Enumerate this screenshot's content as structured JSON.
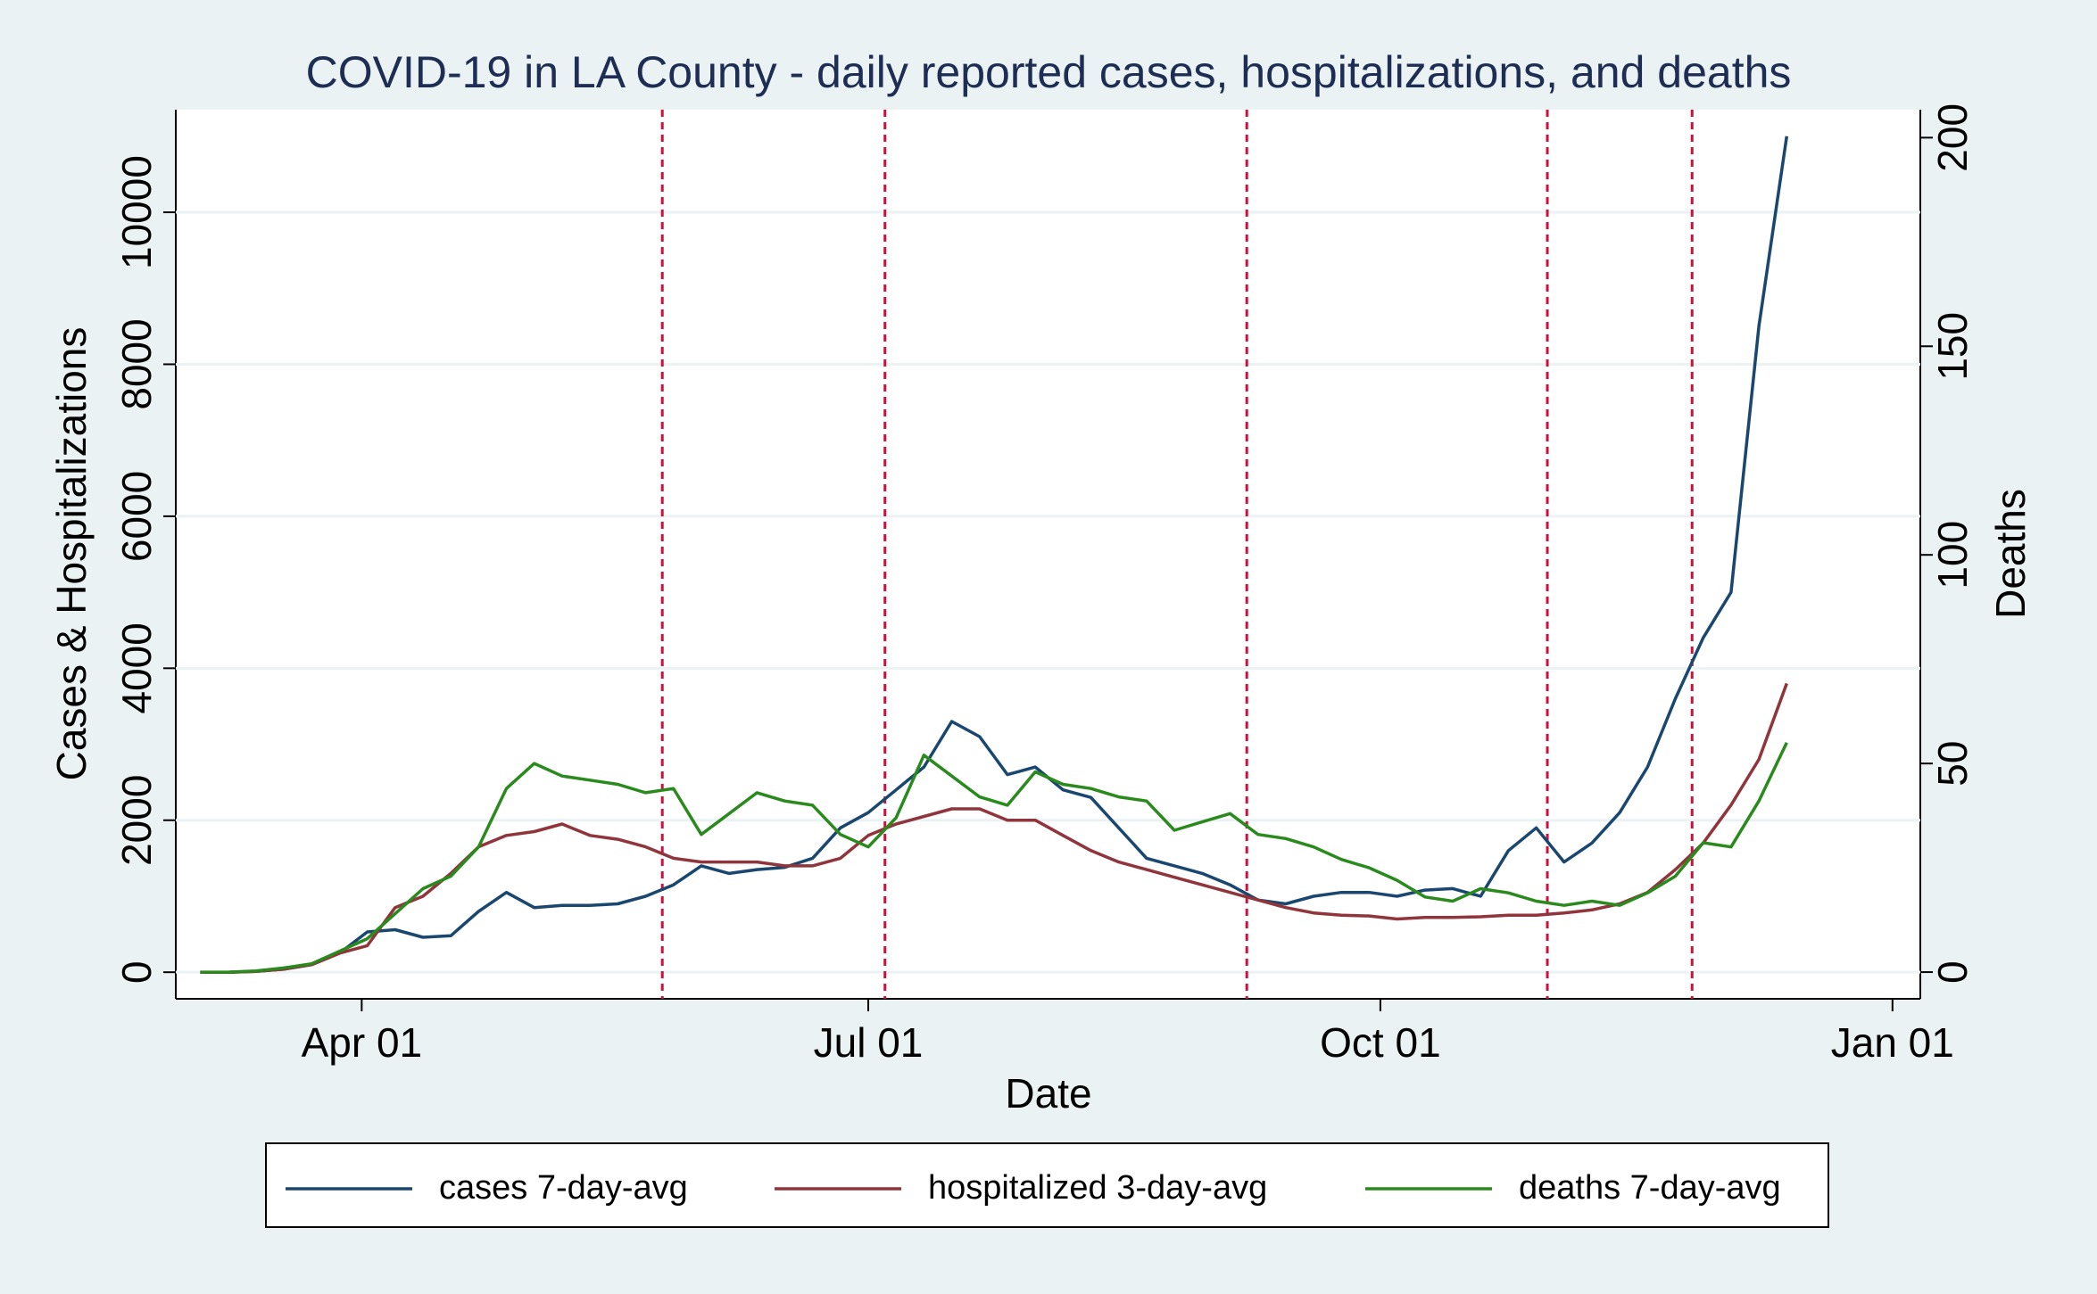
{
  "chart_data": {
    "type": "line",
    "title": "COVID-19 in LA County - daily reported cases, hospitalizations, and deaths",
    "x_label": "Date",
    "y_label": "Cases & Hospitalizations",
    "y2_label": "Deaths",
    "x": [
      62,
      67,
      72,
      77,
      82,
      87,
      92,
      97,
      102,
      107,
      112,
      117,
      122,
      127,
      132,
      137,
      142,
      147,
      152,
      157,
      162,
      167,
      172,
      177,
      182,
      187,
      192,
      197,
      202,
      207,
      212,
      217,
      222,
      227,
      232,
      237,
      242,
      247,
      252,
      257,
      262,
      267,
      272,
      277,
      282,
      287,
      292,
      297,
      302,
      307,
      312,
      317,
      322,
      327,
      332,
      337,
      342,
      347
    ],
    "series": [
      {
        "name": "cases 7-day-avg",
        "color": "#1a476f",
        "values": [
          0,
          0,
          10,
          40,
          100,
          250,
          530,
          560,
          460,
          480,
          800,
          1050,
          850,
          880,
          880,
          900,
          1000,
          1150,
          1400,
          1300,
          1350,
          1380,
          1500,
          1900,
          2100,
          2400,
          2700,
          3300,
          3100,
          2600,
          2700,
          2400,
          2300,
          1900,
          1500,
          1400,
          1300,
          1150,
          950,
          900,
          1000,
          1050,
          1050,
          1000,
          1080,
          1100,
          1000,
          1600,
          1900,
          1450,
          1700,
          2100,
          2700,
          3600,
          4400,
          5000,
          8500,
          11000
        ]
      },
      {
        "name": "hospitalized 3-day-avg",
        "color": "#90353b",
        "values": [
          0,
          0,
          10,
          40,
          100,
          250,
          350,
          850,
          1000,
          1300,
          1650,
          1800,
          1850,
          1950,
          1800,
          1750,
          1650,
          1500,
          1450,
          1450,
          1450,
          1400,
          1400,
          1500,
          1800,
          1950,
          2050,
          2150,
          2150,
          2000,
          2000,
          1800,
          1600,
          1450,
          1350,
          1250,
          1150,
          1050,
          950,
          850,
          780,
          750,
          740,
          700,
          720,
          720,
          730,
          750,
          750,
          780,
          820,
          900,
          1050,
          1350,
          1700,
          2200,
          2800,
          3800
        ]
      },
      {
        "name": "deaths 7-day-avg",
        "color": "#2a8a1e",
        "axis": "y2",
        "values": [
          0,
          0,
          0.3,
          1,
          2,
          5,
          8,
          14,
          20,
          23,
          30,
          44,
          50,
          47,
          46,
          45,
          43,
          44,
          33,
          38,
          43,
          41,
          40,
          33,
          30,
          37,
          52,
          47,
          42,
          40,
          48,
          45,
          44,
          42,
          41,
          34,
          36,
          38,
          33,
          32,
          30,
          27,
          25,
          22,
          18,
          17,
          20,
          19,
          17,
          16,
          17,
          16,
          19,
          23,
          31,
          30,
          41,
          55
        ]
      }
    ],
    "xlim": [
      57.6,
      371
    ],
    "xticks": [
      {
        "value": 91,
        "label": "Apr 01"
      },
      {
        "value": 182,
        "label": "Jul 01"
      },
      {
        "value": 274,
        "label": "Oct 01"
      },
      {
        "value": 366,
        "label": "Jan 01"
      }
    ],
    "ylim": [
      -350,
      11350
    ],
    "yticks": [
      0,
      2000,
      4000,
      6000,
      8000,
      10000
    ],
    "y2lim": [
      -6.4,
      206.7
    ],
    "y2ticks": [
      0,
      50,
      100,
      150,
      200
    ],
    "vlines": [
      145,
      185,
      250,
      304,
      330
    ],
    "vline_color": "#d0103a",
    "grid": true
  }
}
